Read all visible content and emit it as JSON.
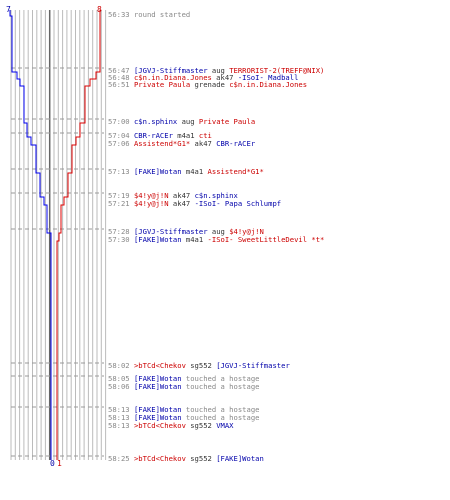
{
  "colors": {
    "ct": "#0000ee",
    "t": "#dd0000",
    "grid": "#bbbbbb",
    "dash": "#999999",
    "time": "#888888"
  },
  "scores": {
    "ct_start": "7",
    "t_start": "8",
    "ct_end": "0",
    "t_end": "1"
  },
  "events": [
    {
      "time": "56:33",
      "gap": false,
      "parts": [
        {
          "text": "round started",
          "c": "gray"
        }
      ]
    },
    {
      "time": "56:47",
      "gap": true,
      "parts": [
        {
          "text": "[JGVJ-Stiffmaster",
          "c": "blue"
        },
        {
          "text": " aug ",
          "c": "blk"
        },
        {
          "text": "TERRORIST-2(TREFF@NIX)",
          "c": "red"
        }
      ]
    },
    {
      "time": "56:48",
      "gap": false,
      "parts": [
        {
          "text": "c$n.in.Diana.Jones",
          "c": "red"
        },
        {
          "text": " ak47 ",
          "c": "blk"
        },
        {
          "text": "-ISoI- Madball",
          "c": "blue"
        }
      ]
    },
    {
      "time": "56:51",
      "gap": false,
      "parts": [
        {
          "text": "Private Paula",
          "c": "red"
        },
        {
          "text": " grenade ",
          "c": "blk"
        },
        {
          "text": "c$n.in.Diana.Jones",
          "c": "red"
        }
      ]
    },
    {
      "time": "57:00",
      "gap": true,
      "parts": [
        {
          "text": "c$n.sphinx",
          "c": "blue"
        },
        {
          "text": " aug ",
          "c": "blk"
        },
        {
          "text": "Private Paula",
          "c": "red"
        }
      ]
    },
    {
      "time": "57:04",
      "gap": true,
      "parts": [
        {
          "text": "CBR-rACEr",
          "c": "blue"
        },
        {
          "text": " m4a1 ",
          "c": "blk"
        },
        {
          "text": "cti",
          "c": "red"
        }
      ]
    },
    {
      "time": "57:06",
      "gap": false,
      "parts": [
        {
          "text": "Assistend*G1*",
          "c": "red"
        },
        {
          "text": " ak47 ",
          "c": "blk"
        },
        {
          "text": "CBR-rACEr",
          "c": "blue"
        }
      ]
    },
    {
      "time": "57:13",
      "gap": true,
      "parts": [
        {
          "text": "[FAKE]Wotan",
          "c": "blue"
        },
        {
          "text": " m4a1 ",
          "c": "blk"
        },
        {
          "text": "Assistend*G1*",
          "c": "red"
        }
      ]
    },
    {
      "time": "57:19",
      "gap": true,
      "parts": [
        {
          "text": "$4!y@j!N",
          "c": "red"
        },
        {
          "text": " ak47 ",
          "c": "blk"
        },
        {
          "text": "c$n.sphinx",
          "c": "blue"
        }
      ]
    },
    {
      "time": "57:21",
      "gap": false,
      "parts": [
        {
          "text": "$4!y@j!N",
          "c": "red"
        },
        {
          "text": " ak47 ",
          "c": "blk"
        },
        {
          "text": "-ISoI- Papa Schlumpf",
          "c": "blue"
        }
      ]
    },
    {
      "time": "57:28",
      "gap": true,
      "parts": [
        {
          "text": "[JGVJ-Stiffmaster",
          "c": "blue"
        },
        {
          "text": " aug ",
          "c": "blk"
        },
        {
          "text": "$4!y@j!N",
          "c": "red"
        }
      ]
    },
    {
      "time": "57:30",
      "gap": false,
      "parts": [
        {
          "text": "[FAKE]Wotan",
          "c": "blue"
        },
        {
          "text": " m4a1 ",
          "c": "blk"
        },
        {
          "text": "-ISoI- SweetLittleDevil *t*",
          "c": "red"
        }
      ]
    },
    {
      "time": "58:02",
      "gap": true,
      "parts": [
        {
          "text": ">bTCd<Chekov",
          "c": "red"
        },
        {
          "text": " sg552 ",
          "c": "blk"
        },
        {
          "text": "[JGVJ-Stiffmaster",
          "c": "blue"
        }
      ]
    },
    {
      "time": "58:05",
      "gap": true,
      "parts": [
        {
          "text": "[FAKE]Wotan",
          "c": "blue"
        },
        {
          "text": " touched a hostage",
          "c": "gray"
        }
      ]
    },
    {
      "time": "58:06",
      "gap": false,
      "parts": [
        {
          "text": "[FAKE]Wotan",
          "c": "blue"
        },
        {
          "text": " touched a hostage",
          "c": "gray"
        }
      ]
    },
    {
      "time": "58:13",
      "gap": true,
      "parts": [
        {
          "text": "[FAKE]Wotan",
          "c": "blue"
        },
        {
          "text": " touched a hostage",
          "c": "gray"
        }
      ]
    },
    {
      "time": "58:13",
      "gap": false,
      "parts": [
        {
          "text": "[FAKE]Wotan",
          "c": "blue"
        },
        {
          "text": " touched a hostage",
          "c": "gray"
        }
      ]
    },
    {
      "time": "58:13",
      "gap": false,
      "parts": [
        {
          "text": ">bTCd<Chekov",
          "c": "red"
        },
        {
          "text": " sg552 ",
          "c": "blk"
        },
        {
          "text": "VMAX",
          "c": "blue"
        }
      ]
    },
    {
      "time": "58:25",
      "gap": true,
      "parts": [
        {
          "text": ">bTCd<Chekov",
          "c": "red"
        },
        {
          "text": " sg552 ",
          "c": "blk"
        },
        {
          "text": "[FAKE]Wotan",
          "c": "blue"
        }
      ]
    }
  ]
}
